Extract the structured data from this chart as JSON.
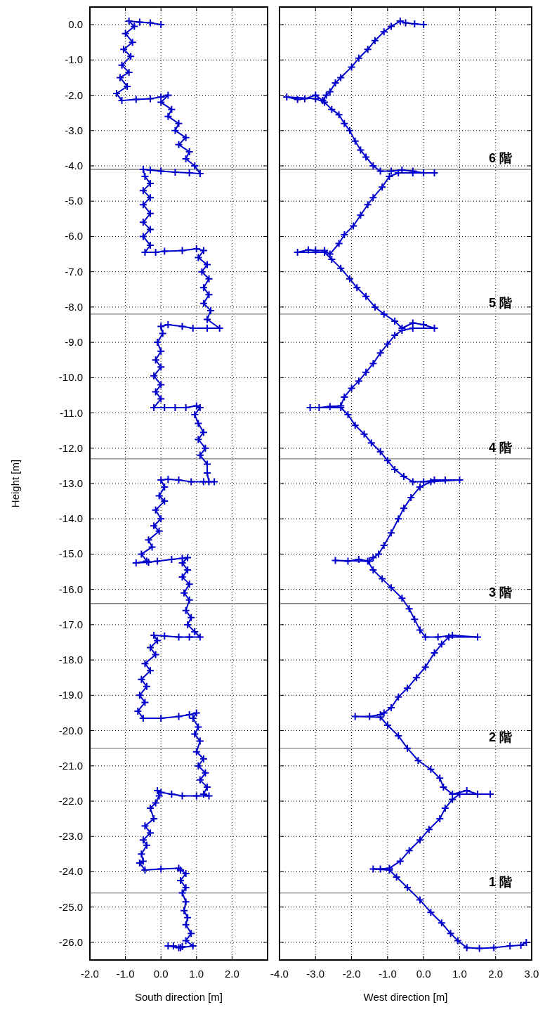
{
  "chart_data": [
    {
      "type": "line",
      "xlabel": "South direction [m]",
      "ylabel": "Height [m]",
      "color": "#0000cc",
      "marker": "cross",
      "grid": true,
      "x": [
        0.0,
        -0.3,
        -0.6,
        -0.9,
        -0.75,
        -1.0,
        -0.8,
        -1.05,
        -0.85,
        -1.1,
        -0.9,
        -1.15,
        -0.95,
        -1.25,
        -1.1,
        -0.7,
        -0.3,
        0.0,
        0.2,
        0.0,
        0.3,
        0.2,
        0.5,
        0.4,
        0.7,
        0.5,
        0.8,
        0.7,
        0.95,
        1.1,
        0.8,
        0.4,
        0.0,
        -0.3,
        -0.5,
        -0.45,
        -0.3,
        -0.5,
        -0.3,
        -0.5,
        -0.3,
        -0.5,
        -0.3,
        -0.5,
        -0.3,
        -0.45,
        -0.15,
        0.1,
        0.6,
        1.0,
        1.2,
        1.05,
        1.3,
        1.15,
        1.35,
        1.2,
        1.35,
        1.2,
        1.4,
        1.3,
        1.65,
        1.3,
        0.9,
        0.6,
        0.2,
        0.0,
        0.05,
        -0.1,
        0.0,
        -0.15,
        0.0,
        -0.2,
        0.0,
        -0.15,
        0.0,
        -0.2,
        0.1,
        0.4,
        0.7,
        1.0,
        1.1,
        0.95,
        1.05,
        1.2,
        1.05,
        1.25,
        1.1,
        1.3,
        1.3,
        1.35,
        1.5,
        1.2,
        0.85,
        0.5,
        0.2,
        0.0,
        0.1,
        -0.05,
        0.1,
        -0.15,
        0.0,
        -0.2,
        -0.05,
        -0.35,
        -0.25,
        -0.55,
        -0.4,
        -0.7,
        -0.35,
        -0.1,
        0.3,
        0.6,
        0.75,
        0.6,
        0.75,
        0.6,
        0.8,
        0.65,
        0.8,
        0.7,
        0.85,
        0.75,
        0.95,
        1.1,
        0.8,
        0.5,
        0.1,
        -0.2,
        -0.1,
        -0.3,
        -0.15,
        -0.45,
        -0.3,
        -0.55,
        -0.4,
        -0.6,
        -0.45,
        -0.65,
        -0.5,
        0.0,
        0.5,
        0.8,
        1.0,
        0.9,
        1.05,
        0.95,
        1.1,
        1.0,
        1.2,
        1.05,
        1.25,
        1.1,
        1.3,
        1.2,
        1.35,
        1.0,
        0.6,
        0.3,
        0.0,
        -0.1,
        -0.05,
        -0.15,
        -0.3,
        -0.2,
        -0.45,
        -0.3,
        -0.5,
        -0.4,
        -0.55,
        -0.5,
        -0.6,
        -0.45,
        0.0,
        0.5,
        0.55,
        0.7,
        0.55,
        0.7,
        0.6,
        0.7,
        0.65,
        0.75,
        0.7,
        0.85,
        0.7,
        0.9,
        0.55,
        0.35,
        0.2,
        0.5,
        0.6
      ],
      "values": [
        0.0,
        0.05,
        0.07,
        0.1,
        -0.05,
        -0.25,
        -0.5,
        -0.7,
        -0.9,
        -1.15,
        -1.35,
        -1.5,
        -1.75,
        -1.95,
        -2.15,
        -2.12,
        -2.1,
        -2.05,
        -2.0,
        -2.2,
        -2.4,
        -2.6,
        -2.8,
        -3.0,
        -3.2,
        -3.4,
        -3.6,
        -3.8,
        -4.0,
        -4.22,
        -4.2,
        -4.18,
        -4.15,
        -4.12,
        -4.1,
        -4.3,
        -4.5,
        -4.7,
        -4.9,
        -5.1,
        -5.35,
        -5.6,
        -5.8,
        -6.0,
        -6.25,
        -6.45,
        -6.45,
        -6.42,
        -6.4,
        -6.35,
        -6.4,
        -6.6,
        -6.8,
        -7.0,
        -7.2,
        -7.45,
        -7.65,
        -7.9,
        -8.1,
        -8.35,
        -8.6,
        -8.6,
        -8.6,
        -8.55,
        -8.5,
        -8.55,
        -8.75,
        -9.0,
        -9.25,
        -9.5,
        -9.7,
        -9.95,
        -10.2,
        -10.4,
        -10.6,
        -10.85,
        -10.85,
        -10.85,
        -10.85,
        -10.8,
        -10.85,
        -11.05,
        -11.3,
        -11.55,
        -11.75,
        -12.0,
        -12.2,
        -12.45,
        -12.7,
        -12.95,
        -12.95,
        -12.95,
        -12.95,
        -12.9,
        -12.88,
        -12.9,
        -13.1,
        -13.35,
        -13.5,
        -13.75,
        -14.0,
        -14.2,
        -14.35,
        -14.6,
        -14.8,
        -15.0,
        -15.2,
        -15.25,
        -15.23,
        -15.2,
        -15.15,
        -15.12,
        -15.1,
        -15.25,
        -15.45,
        -15.65,
        -15.85,
        -16.1,
        -16.3,
        -16.6,
        -16.8,
        -17.0,
        -17.2,
        -17.35,
        -17.35,
        -17.35,
        -17.32,
        -17.3,
        -17.45,
        -17.65,
        -17.85,
        -18.1,
        -18.3,
        -18.55,
        -18.75,
        -19.0,
        -19.2,
        -19.45,
        -19.65,
        -19.65,
        -19.6,
        -19.55,
        -19.5,
        -19.65,
        -19.9,
        -20.1,
        -20.3,
        -20.6,
        -20.8,
        -21.0,
        -21.2,
        -21.4,
        -21.6,
        -21.8,
        -21.85,
        -21.85,
        -21.85,
        -21.8,
        -21.75,
        -21.7,
        -21.85,
        -22.05,
        -22.2,
        -22.5,
        -22.7,
        -22.9,
        -23.1,
        -23.25,
        -23.5,
        -23.7,
        -23.75,
        -23.95,
        -23.92,
        -23.9,
        -23.95,
        -24.05,
        -24.25,
        -24.45,
        -24.6,
        -24.85,
        -25.1,
        -25.3,
        -25.5,
        -25.75,
        -25.95,
        -26.1,
        -26.15,
        -26.1,
        -26.1,
        -26.15,
        -26.12
      ],
      "xlim": [
        -2,
        3
      ],
      "ylim": [
        -26.5,
        0.5
      ],
      "xticks": [
        {
          "value": -2,
          "label": "-2.0"
        },
        {
          "value": -1,
          "label": "-1.0"
        },
        {
          "value": 0,
          "label": "0.0"
        },
        {
          "value": 1,
          "label": "1.0"
        },
        {
          "value": 2,
          "label": "2.0"
        },
        {
          "value": 3,
          "label": null
        }
      ],
      "yticks": [
        {
          "value": 0,
          "label": "0.0"
        },
        {
          "value": -1,
          "label": "-1.0"
        },
        {
          "value": -2,
          "label": "-2.0"
        },
        {
          "value": -3,
          "label": "-3.0"
        },
        {
          "value": -4,
          "label": "-4.0"
        },
        {
          "value": -5,
          "label": "-5.0"
        },
        {
          "value": -6,
          "label": "-6.0"
        },
        {
          "value": -7,
          "label": "-7.0"
        },
        {
          "value": -8,
          "label": "-8.0"
        },
        {
          "value": -9,
          "label": "-9.0"
        },
        {
          "value": -10,
          "label": "-10.0"
        },
        {
          "value": -11,
          "label": "-11.0"
        },
        {
          "value": -12,
          "label": "-12.0"
        },
        {
          "value": -13,
          "label": "-13.0"
        },
        {
          "value": -14,
          "label": "-14.0"
        },
        {
          "value": -15,
          "label": "-15.0"
        },
        {
          "value": -16,
          "label": "-16.0"
        },
        {
          "value": -17,
          "label": "-17.0"
        },
        {
          "value": -18,
          "label": "-18.0"
        },
        {
          "value": -19,
          "label": "-19.0"
        },
        {
          "value": -20,
          "label": "-20.0"
        },
        {
          "value": -21,
          "label": "-21.0"
        },
        {
          "value": -22,
          "label": "-22.0"
        },
        {
          "value": -23,
          "label": "-23.0"
        },
        {
          "value": -24,
          "label": "-24.0"
        },
        {
          "value": -25,
          "label": "-25.0"
        },
        {
          "value": -26,
          "label": "-26.0"
        }
      ],
      "ref_lines": [
        {
          "axis": "y",
          "value": -4.1,
          "color": "#808080"
        },
        {
          "axis": "y",
          "value": -8.2,
          "color": "#808080"
        },
        {
          "axis": "y",
          "value": -12.3,
          "color": "#808080"
        },
        {
          "axis": "y",
          "value": -16.4,
          "color": "#808080"
        },
        {
          "axis": "y",
          "value": -20.5,
          "color": "#808080"
        },
        {
          "axis": "y",
          "value": -24.6,
          "color": "#808080"
        }
      ]
    },
    {
      "type": "line",
      "xlabel": "West direction [m]",
      "color": "#0000cc",
      "marker": "cross",
      "grid": true,
      "tick_labels": "x",
      "x": [
        0.0,
        -0.25,
        -0.5,
        -0.65,
        -0.9,
        -1.1,
        -1.35,
        -1.55,
        -1.8,
        -2.0,
        -2.3,
        -2.45,
        -2.6,
        -2.7,
        -2.8,
        -3.0,
        -3.3,
        -3.5,
        -3.8,
        -3.0,
        -2.75,
        -2.55,
        -2.35,
        -2.2,
        -2.05,
        -1.9,
        -1.75,
        -1.6,
        -1.4,
        -1.2,
        -0.9,
        -0.6,
        -0.3,
        0.0,
        0.3,
        -0.3,
        -0.7,
        -0.95,
        -1.15,
        -1.4,
        -1.55,
        -1.75,
        -1.95,
        -2.2,
        -2.35,
        -2.6,
        -2.75,
        -3.0,
        -3.2,
        -3.5,
        -2.75,
        -2.55,
        -2.3,
        -2.05,
        -1.85,
        -1.6,
        -1.35,
        -1.1,
        -0.8,
        -0.6,
        -0.3,
        0.0,
        0.3,
        -0.3,
        -0.6,
        -0.8,
        -1.0,
        -1.2,
        -1.4,
        -1.6,
        -1.8,
        -2.0,
        -2.2,
        -2.3,
        -2.6,
        -2.9,
        -3.15,
        -2.3,
        -2.1,
        -1.9,
        -1.65,
        -1.45,
        -1.2,
        -1.0,
        -0.8,
        -0.55,
        -0.3,
        0.0,
        0.3,
        0.6,
        1.0,
        0.2,
        -0.1,
        -0.35,
        -0.55,
        -0.7,
        -0.9,
        -1.1,
        -1.25,
        -1.4,
        -1.5,
        -1.8,
        -2.1,
        -2.45,
        -1.55,
        -1.4,
        -1.15,
        -0.9,
        -0.6,
        -0.4,
        -0.25,
        -0.1,
        0.05,
        0.4,
        0.8,
        1.5,
        0.7,
        0.5,
        0.3,
        0.05,
        -0.2,
        -0.45,
        -0.7,
        -0.9,
        -1.1,
        -1.2,
        -1.5,
        -1.9,
        -1.2,
        -1.0,
        -0.7,
        -0.45,
        -0.15,
        0.2,
        0.45,
        0.55,
        0.8,
        1.2,
        1.5,
        1.85,
        1.0,
        0.8,
        0.6,
        0.45,
        0.15,
        -0.1,
        -0.4,
        -0.65,
        -0.95,
        -1.2,
        -1.4,
        -0.95,
        -0.75,
        -0.45,
        -0.1,
        0.2,
        0.5,
        0.75,
        0.95,
        1.2,
        1.55,
        1.95,
        2.4,
        2.7,
        2.85
      ],
      "values": [
        0.0,
        0.02,
        0.05,
        0.1,
        -0.05,
        -0.2,
        -0.45,
        -0.7,
        -0.95,
        -1.2,
        -1.5,
        -1.65,
        -1.9,
        -2.0,
        -2.15,
        -2.0,
        -2.1,
        -2.12,
        -2.05,
        -2.1,
        -2.2,
        -2.4,
        -2.55,
        -2.8,
        -3.0,
        -3.3,
        -3.55,
        -3.75,
        -4.0,
        -4.15,
        -4.15,
        -4.12,
        -4.15,
        -4.2,
        -4.2,
        -4.2,
        -4.2,
        -4.3,
        -4.6,
        -4.9,
        -5.1,
        -5.4,
        -5.7,
        -5.95,
        -6.2,
        -6.5,
        -6.4,
        -6.4,
        -6.38,
        -6.45,
        -6.45,
        -6.65,
        -6.9,
        -7.2,
        -7.45,
        -7.7,
        -8.0,
        -8.2,
        -8.4,
        -8.6,
        -8.45,
        -8.5,
        -8.6,
        -8.6,
        -8.66,
        -8.8,
        -9.05,
        -9.3,
        -9.6,
        -9.85,
        -10.1,
        -10.3,
        -10.55,
        -10.8,
        -10.82,
        -10.85,
        -10.85,
        -10.85,
        -11.05,
        -11.35,
        -11.6,
        -11.85,
        -12.1,
        -12.35,
        -12.6,
        -12.8,
        -12.95,
        -12.95,
        -12.9,
        -12.9,
        -12.9,
        -12.95,
        -13.1,
        -13.4,
        -13.7,
        -14.0,
        -14.4,
        -14.75,
        -15.0,
        -15.1,
        -15.2,
        -15.15,
        -15.2,
        -15.18,
        -15.2,
        -15.45,
        -15.7,
        -15.95,
        -16.25,
        -16.55,
        -16.85,
        -17.15,
        -17.35,
        -17.35,
        -17.3,
        -17.35,
        -17.35,
        -17.55,
        -17.8,
        -18.2,
        -18.5,
        -18.8,
        -19.05,
        -19.35,
        -19.5,
        -19.55,
        -19.6,
        -19.6,
        -19.62,
        -19.85,
        -20.15,
        -20.5,
        -20.85,
        -21.1,
        -21.35,
        -21.6,
        -21.8,
        -21.7,
        -21.8,
        -21.8,
        -21.8,
        -21.95,
        -22.2,
        -22.5,
        -22.8,
        -23.1,
        -23.4,
        -23.7,
        -23.9,
        -23.92,
        -23.92,
        -23.95,
        -24.15,
        -24.45,
        -24.8,
        -25.15,
        -25.45,
        -25.75,
        -25.95,
        -26.15,
        -26.17,
        -26.15,
        -26.1,
        -26.08,
        -26.0
      ],
      "xlim": [
        -4,
        3
      ],
      "xticks": [
        {
          "value": -4,
          "label": "-4.0"
        },
        {
          "value": -3,
          "label": "-3.0"
        },
        {
          "value": -2,
          "label": "-2.0"
        },
        {
          "value": -1,
          "label": "-1.0"
        },
        {
          "value": 0,
          "label": "0.0"
        },
        {
          "value": 1,
          "label": "1.0"
        },
        {
          "value": 2,
          "label": "2.0"
        },
        {
          "value": 3,
          "label": "3.0"
        }
      ],
      "ylim": [
        -26.5,
        0.5
      ],
      "yticks": [
        0,
        -1,
        -2,
        -3,
        -4,
        -5,
        -6,
        -7,
        -8,
        -9,
        -10,
        -11,
        -12,
        -13,
        -14,
        -15,
        -16,
        -17,
        -18,
        -19,
        -20,
        -21,
        -22,
        -23,
        -24,
        -25,
        -26
      ],
      "ref_lines": [
        {
          "axis": "y",
          "value": -4.1,
          "label": "6 階",
          "color": "#808080"
        },
        {
          "axis": "y",
          "value": -8.2,
          "label": "5 階",
          "color": "#808080"
        },
        {
          "axis": "y",
          "value": -12.3,
          "label": "4 階",
          "color": "#808080"
        },
        {
          "axis": "y",
          "value": -16.4,
          "label": "3 階",
          "color": "#808080"
        },
        {
          "axis": "y",
          "value": -20.5,
          "label": "2 階",
          "color": "#808080"
        },
        {
          "axis": "y",
          "value": -24.6,
          "label": "1 階",
          "color": "#808080"
        }
      ]
    }
  ]
}
